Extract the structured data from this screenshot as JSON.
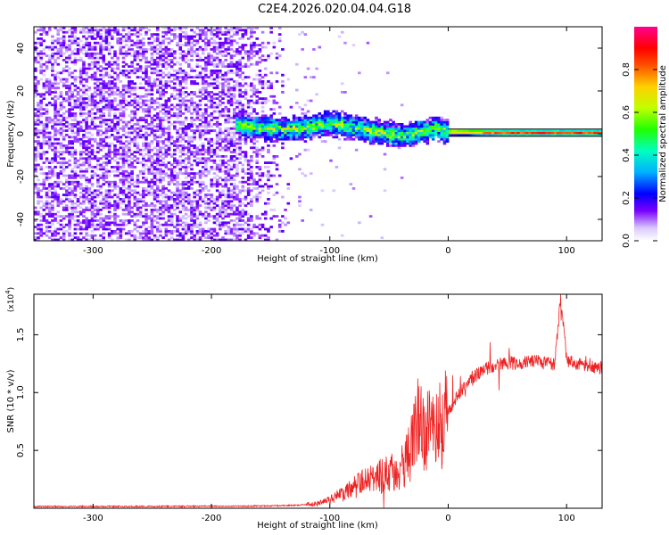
{
  "title": "C2E4.2026.020.04.04.G18",
  "chart_data": [
    {
      "type": "heatmap",
      "name": "spectrogram",
      "xlabel": "Height of straight line (km)",
      "ylabel": "Frequency (Hz)",
      "xlim": [
        -350,
        130
      ],
      "ylim": [
        -50,
        50
      ],
      "xticks": [
        -300,
        -200,
        -100,
        0,
        100
      ],
      "yticks": [
        -40,
        -20,
        0,
        20,
        40
      ],
      "noise_region_x": [
        -350,
        -130
      ],
      "signal_band": [
        {
          "x": -175,
          "freq": 4
        },
        {
          "x": -160,
          "freq": 3
        },
        {
          "x": -140,
          "freq": 2
        },
        {
          "x": -120,
          "freq": 3
        },
        {
          "x": -100,
          "freq": 5
        },
        {
          "x": -80,
          "freq": 3
        },
        {
          "x": -60,
          "freq": 1
        },
        {
          "x": -40,
          "freq": -1
        },
        {
          "x": -20,
          "freq": 1
        },
        {
          "x": -10,
          "freq": 3
        },
        {
          "x": 0,
          "freq": 1
        },
        {
          "x": 50,
          "freq": 0.5
        },
        {
          "x": 130,
          "freq": 0.5
        }
      ],
      "colorbar": {
        "label": "Normalized spectral amplitude",
        "range": [
          0,
          1
        ],
        "ticks": [
          "0.0",
          "0.2",
          "0.4",
          "0.6",
          "0.8"
        ],
        "colors": [
          "#ffffff",
          "#c8a8ff",
          "#7a00ff",
          "#0000ff",
          "#00c8ff",
          "#00ff90",
          "#40ff00",
          "#d0ff00",
          "#ffd000",
          "#ff6000",
          "#ff0000",
          "#ff0080",
          "#ff0090"
        ]
      }
    },
    {
      "type": "line",
      "name": "snr",
      "xlabel": "Height of straight line (km)",
      "ylabel": "SNR (10 * v/v)",
      "scale_label": "(x10",
      "scale_exp": "4",
      "xlim": [
        -350,
        130
      ],
      "ylim": [
        0,
        18500
      ],
      "xticks": [
        -300,
        -200,
        -100,
        0,
        100
      ],
      "yticks": [
        {
          "value": 5000,
          "label": "0.5"
        },
        {
          "value": 10000,
          "label": "1.0"
        },
        {
          "value": 15000,
          "label": "1.5"
        }
      ],
      "color": "#ee2222",
      "series": [
        {
          "name": "SNR",
          "x": [
            -350,
            -250,
            -170,
            -130,
            -110,
            -100,
            -90,
            -80,
            -70,
            -60,
            -50,
            -40,
            -30,
            -25,
            -20,
            -10,
            0,
            10,
            20,
            30,
            40,
            50,
            60,
            70,
            80,
            90,
            95,
            100,
            110,
            120,
            130
          ],
          "values": [
            150,
            160,
            180,
            250,
            400,
            700,
            1200,
            1800,
            2300,
            2600,
            3000,
            3300,
            5500,
            7500,
            7000,
            6500,
            8500,
            10000,
            11300,
            12000,
            12400,
            12600,
            12500,
            12800,
            12600,
            12400,
            18300,
            12800,
            12500,
            12300,
            12200
          ]
        }
      ]
    }
  ]
}
